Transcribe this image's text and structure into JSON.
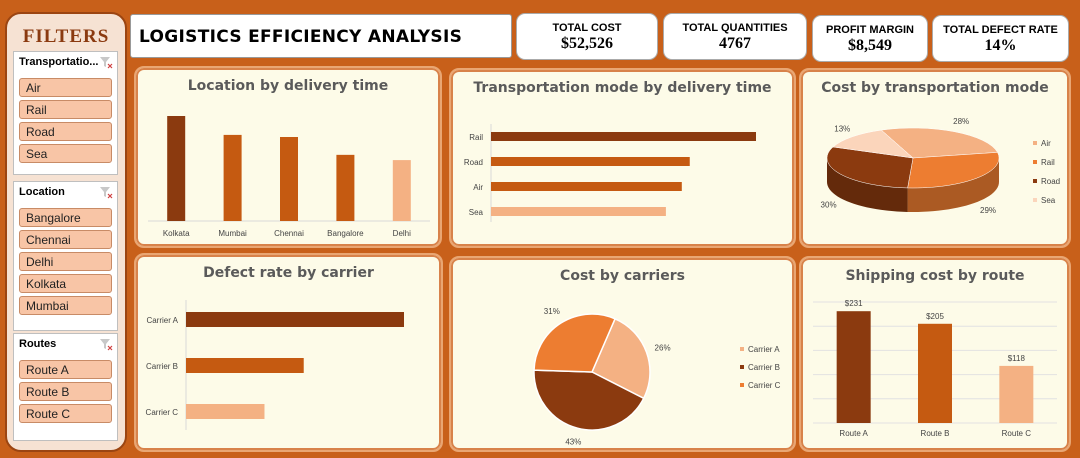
{
  "filters": {
    "title": "FILTERS",
    "transport": {
      "header": "Transportatio...",
      "items": [
        "Air",
        "Rail",
        "Road",
        "Sea"
      ]
    },
    "location": {
      "header": "Location",
      "items": [
        "Bangalore",
        "Chennai",
        "Delhi",
        "Kolkata",
        "Mumbai"
      ]
    },
    "routes": {
      "header": "Routes",
      "items": [
        "Route A",
        "Route B",
        "Route C"
      ]
    }
  },
  "header": {
    "title": "LOGISTICS EFFICIENCY ANALYSIS"
  },
  "kpis": {
    "total_cost": {
      "label": "TOTAL COST",
      "value": "$52,526"
    },
    "total_quantities": {
      "label": "TOTAL QUANTITIES",
      "value": "4767"
    },
    "profit_margin": {
      "label": "PROFIT MARGIN",
      "value": "$8,549"
    },
    "defect_rate": {
      "label": "TOTAL DEFECT RATE",
      "value": "14%"
    }
  },
  "colors": {
    "dark": "#8b3a0f",
    "mid": "#c55a11",
    "orange": "#ed7d31",
    "light": "#f4b183",
    "background": "#c8601a",
    "panel": "#fdfbe8"
  },
  "chart_data": [
    {
      "type": "bar",
      "title": "Location by delivery time",
      "categories": [
        "Kolkata",
        "Mumbai",
        "Chennai",
        "Bangalore",
        "Delhi"
      ],
      "values": [
        100,
        82,
        80,
        63,
        58
      ],
      "colors": [
        "#8b3a0f",
        "#c55a11",
        "#c55a11",
        "#c55a11",
        "#f4b183"
      ],
      "grid": false
    },
    {
      "type": "bar",
      "orientation": "horizontal",
      "title": "Transportation mode by delivery time",
      "categories": [
        "Rail",
        "Road",
        "Air",
        "Sea"
      ],
      "values": [
        100,
        75,
        72,
        66
      ],
      "colors": [
        "#8b3a0f",
        "#c55a11",
        "#c55a11",
        "#f4b183"
      ]
    },
    {
      "type": "pie",
      "style": "3d",
      "title": "Cost by transportation mode",
      "labels": [
        "Air",
        "Rail",
        "Road",
        "Sea"
      ],
      "values": [
        28,
        29,
        30,
        13
      ],
      "value_labels": [
        "28%",
        "29%",
        "30%",
        "13%"
      ],
      "colors": [
        "#f4b183",
        "#ed7d31",
        "#8b3a0f",
        "#fbd5bb"
      ],
      "legend": "right"
    },
    {
      "type": "bar",
      "orientation": "horizontal",
      "title": "Defect rate by carrier",
      "categories": [
        "Carrier A",
        "Carrier B",
        "Carrier C"
      ],
      "values": [
        100,
        54,
        36
      ],
      "colors": [
        "#8b3a0f",
        "#c55a11",
        "#f4b183"
      ]
    },
    {
      "type": "pie",
      "title": "Cost by carriers",
      "labels": [
        "Carrier A",
        "Carrier B",
        "Carrier C"
      ],
      "values": [
        26,
        43,
        31
      ],
      "value_labels": [
        "26%",
        "43%",
        "31%"
      ],
      "colors": [
        "#f4b183",
        "#8b3a0f",
        "#ed7d31"
      ],
      "legend": "right"
    },
    {
      "type": "bar",
      "title": "Shipping cost by route",
      "categories": [
        "Route A",
        "Route B",
        "Route C"
      ],
      "values": [
        231,
        205,
        118
      ],
      "value_labels": [
        "$231",
        "$205",
        "$118"
      ],
      "colors": [
        "#8b3a0f",
        "#c55a11",
        "#f4b183"
      ],
      "grid": true
    }
  ]
}
